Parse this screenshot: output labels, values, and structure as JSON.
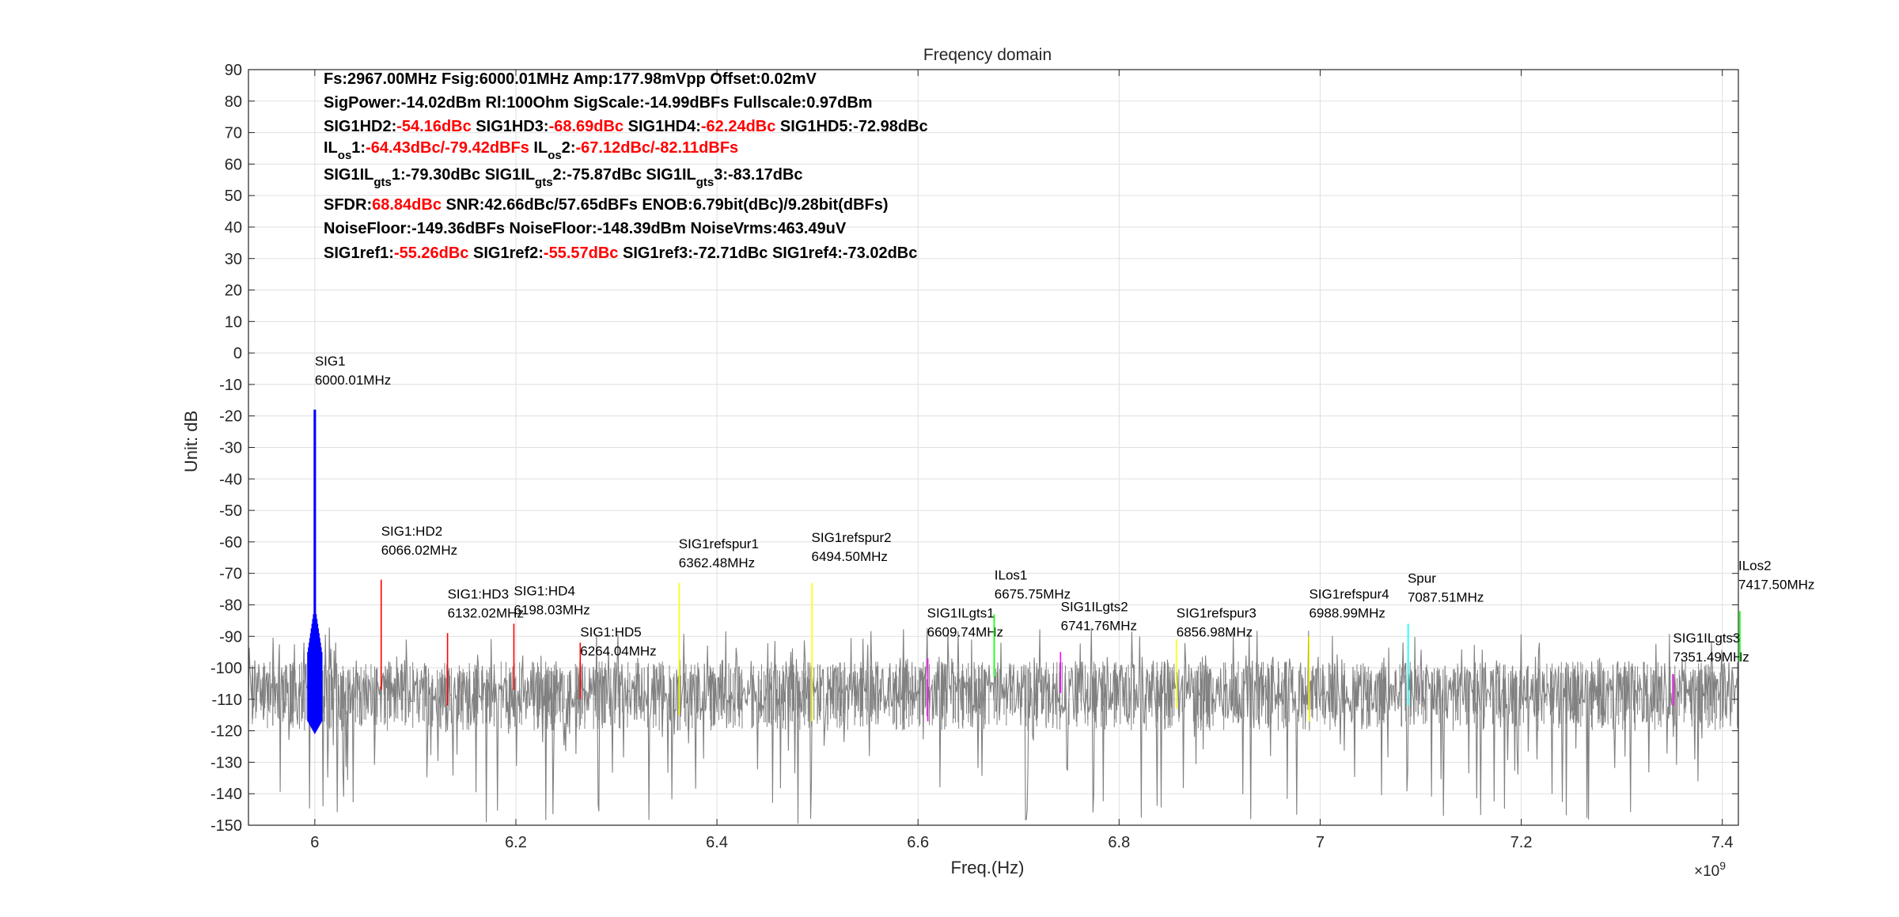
{
  "chart_data": {
    "type": "line",
    "title": "Freqency domain",
    "xlabel": "Freq.(Hz)",
    "ylabel": "Unit: dB",
    "x_exponent_label": "×10",
    "x_exponent_power": "9",
    "xlim": [
      5.934,
      7.416
    ],
    "ylim": [
      -150,
      90
    ],
    "grid": true,
    "xticks": [
      {
        "v": 6.0,
        "label": "6"
      },
      {
        "v": 6.2,
        "label": "6.2"
      },
      {
        "v": 6.4,
        "label": "6.4"
      },
      {
        "v": 6.6,
        "label": "6.6"
      },
      {
        "v": 6.8,
        "label": "6.8"
      },
      {
        "v": 7.0,
        "label": "7"
      },
      {
        "v": 7.2,
        "label": "7.2"
      },
      {
        "v": 7.4,
        "label": "7.4"
      }
    ],
    "yticks": [
      90,
      80,
      70,
      60,
      50,
      40,
      30,
      20,
      10,
      0,
      -10,
      -20,
      -30,
      -40,
      -50,
      -60,
      -70,
      -80,
      -90,
      -100,
      -110,
      -120,
      -130,
      -140,
      -150
    ],
    "noise": {
      "name": "noise",
      "color": "#808080",
      "typical_range": [
        -120,
        -95
      ],
      "spike_min": -150
    },
    "series": [
      {
        "name": "SIG1",
        "freq": "6000.01MHz",
        "x": 6.00001,
        "top": -18,
        "bottom": -121,
        "color": "#0000ff",
        "label_x": 6.0,
        "label_y": -4
      },
      {
        "name": "SIG1:HD2",
        "freq": "6066.02MHz",
        "x": 6.06602,
        "top": -72,
        "bottom": -107,
        "color": "#ff0000",
        "label_x": 6.066,
        "label_y": -58
      },
      {
        "name": "SIG1:HD3",
        "freq": "6132.02MHz",
        "x": 6.13202,
        "top": -89,
        "bottom": -112,
        "color": "#ff0000",
        "label_x": 6.132,
        "label_y": -78
      },
      {
        "name": "SIG1:HD4",
        "freq": "6198.03MHz",
        "x": 6.19803,
        "top": -86,
        "bottom": -107,
        "color": "#ff0000",
        "label_x": 6.198,
        "label_y": -77
      },
      {
        "name": "SIG1:HD5",
        "freq": "6264.04MHz",
        "x": 6.26404,
        "top": -92,
        "bottom": -110,
        "color": "#ff0000",
        "label_x": 6.264,
        "label_y": -90
      },
      {
        "name": "SIG1refspur1",
        "freq": "6362.48MHz",
        "x": 6.36248,
        "top": -73,
        "bottom": -115,
        "color": "#ffff00",
        "label_x": 6.362,
        "label_y": -62
      },
      {
        "name": "SIG1refspur2",
        "freq": "6494.50MHz",
        "x": 6.4945,
        "top": -73,
        "bottom": -117,
        "color": "#ffff00",
        "label_x": 6.494,
        "label_y": -60
      },
      {
        "name": "SIG1ILgts1",
        "freq": "6609.74MHz",
        "x": 6.60974,
        "top": -97,
        "bottom": -117,
        "color": "#ff00ff",
        "label_x": 6.609,
        "label_y": -84
      },
      {
        "name": "ILos1",
        "freq": "6675.75MHz",
        "x": 6.67575,
        "top": -83,
        "bottom": -103,
        "color": "#00ff00",
        "label_x": 6.676,
        "label_y": -72
      },
      {
        "name": "SIG1ILgts2",
        "freq": "6741.76MHz",
        "x": 6.74176,
        "top": -95,
        "bottom": -108,
        "color": "#ff00ff",
        "label_x": 6.742,
        "label_y": -82
      },
      {
        "name": "SIG1refspur3",
        "freq": "6856.98MHz",
        "x": 6.85698,
        "top": -91,
        "bottom": -113,
        "color": "#ffff00",
        "label_x": 6.857,
        "label_y": -84
      },
      {
        "name": "SIG1refspur4",
        "freq": "6988.99MHz",
        "x": 6.98899,
        "top": -90,
        "bottom": -117,
        "color": "#ffff00",
        "label_x": 6.989,
        "label_y": -78
      },
      {
        "name": "Spur",
        "freq": "7087.51MHz",
        "x": 7.08751,
        "top": -86,
        "bottom": -112,
        "color": "#00ffff",
        "label_x": 7.087,
        "label_y": -73
      },
      {
        "name": "SIG1ILgts3",
        "freq": "7351.49MHz",
        "x": 7.35149,
        "top": -102,
        "bottom": -112,
        "color": "#ff00ff",
        "label_x": 7.351,
        "label_y": -92
      },
      {
        "name": "ILos2",
        "freq": "7417.50MHz",
        "x": 7.4175,
        "top": -82,
        "bottom": -98,
        "color": "#00ff00",
        "label_x": 7.416,
        "label_y": -69
      }
    ],
    "info_lines": [
      [
        {
          "t": "Fs:2967.00MHz Fsig:6000.01MHz Amp:177.98mVpp Offset:0.02mV"
        }
      ],
      [
        {
          "t": "SigPower:-14.02dBm Rl:100Ohm SigScale:-14.99dBFs Fullscale:0.97dBm"
        }
      ],
      [
        {
          "t": "SIG1HD2:"
        },
        {
          "t": "-54.16dBc",
          "red": true
        },
        {
          "t": " SIG1HD3:"
        },
        {
          "t": "-68.69dBc",
          "red": true
        },
        {
          "t": " SIG1HD4:"
        },
        {
          "t": "-62.24dBc",
          "red": true
        },
        {
          "t": " SIG1HD5:-72.98dBc"
        }
      ],
      [
        {
          "t": "IL"
        },
        {
          "t": "os",
          "sub": true
        },
        {
          "t": "1:"
        },
        {
          "t": "-64.43dBc/-79.42dBFs",
          "red": true
        },
        {
          "t": " IL"
        },
        {
          "t": "os",
          "sub": true
        },
        {
          "t": "2:"
        },
        {
          "t": "-67.12dBc/-82.11dBFs",
          "red": true
        }
      ],
      [
        {
          "t": "SIG1IL"
        },
        {
          "t": "gts",
          "sub": true
        },
        {
          "t": "1:-79.30dBc SIG1IL"
        },
        {
          "t": "gts",
          "sub": true
        },
        {
          "t": "2:-75.87dBc SIG1IL"
        },
        {
          "t": "gts",
          "sub": true
        },
        {
          "t": "3:-83.17dBc"
        }
      ],
      [
        {
          "t": "SFDR:"
        },
        {
          "t": "68.84dBc",
          "red": true
        },
        {
          "t": " SNR:42.66dBc/57.65dBFs ENOB:6.79bit(dBc)/9.28bit(dBFs)"
        }
      ],
      [
        {
          "t": "NoiseFloor:-149.36dBFs NoiseFloor:-148.39dBm NoiseVrms:463.49uV"
        }
      ],
      [
        {
          "t": "SIG1ref1:"
        },
        {
          "t": "-55.26dBc",
          "red": true
        },
        {
          "t": " SIG1ref2:"
        },
        {
          "t": "-55.57dBc",
          "red": true
        },
        {
          "t": " SIG1ref3:-72.71dBc SIG1ref4:-73.02dBc"
        }
      ]
    ]
  }
}
